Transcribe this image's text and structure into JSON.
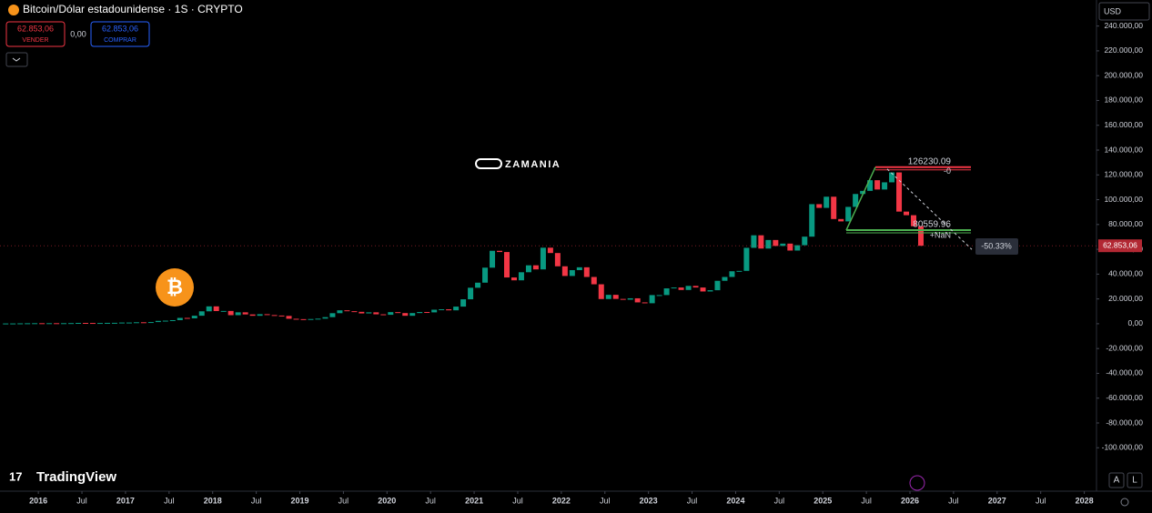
{
  "header": {
    "symbol": "Bitcoin/Dólar estadounidense · 1S · CRYPTO",
    "sell_price": "62.853,06",
    "sell_label": "VENDER",
    "spread": "0,00",
    "buy_price": "62.853,06",
    "buy_label": "COMPRAR",
    "currency": "USD",
    "watermark": "ZAMANIA",
    "brand": "TradingView",
    "auto_button": "A",
    "log_button": "L"
  },
  "chart_data": {
    "type": "candlestick",
    "up_color": "#089981",
    "down_color": "#f23645",
    "x": [
      "2015-08",
      "2015-09",
      "2015-10",
      "2015-11",
      "2015-12",
      "2016-01",
      "2016-02",
      "2016-03",
      "2016-04",
      "2016-05",
      "2016-06",
      "2016-07",
      "2016-08",
      "2016-09",
      "2016-10",
      "2016-11",
      "2016-12",
      "2017-01",
      "2017-02",
      "2017-03",
      "2017-04",
      "2017-05",
      "2017-06",
      "2017-07",
      "2017-08",
      "2017-09",
      "2017-10",
      "2017-11",
      "2017-12",
      "2018-01",
      "2018-02",
      "2018-03",
      "2018-04",
      "2018-05",
      "2018-06",
      "2018-07",
      "2018-08",
      "2018-09",
      "2018-10",
      "2018-11",
      "2018-12",
      "2019-01",
      "2019-02",
      "2019-03",
      "2019-04",
      "2019-05",
      "2019-06",
      "2019-07",
      "2019-08",
      "2019-09",
      "2019-10",
      "2019-11",
      "2019-12",
      "2020-01",
      "2020-02",
      "2020-03",
      "2020-04",
      "2020-05",
      "2020-06",
      "2020-07",
      "2020-08",
      "2020-09",
      "2020-10",
      "2020-11",
      "2020-12",
      "2021-01",
      "2021-02",
      "2021-03",
      "2021-04",
      "2021-05",
      "2021-06",
      "2021-07",
      "2021-08",
      "2021-09",
      "2021-10",
      "2021-11",
      "2021-12",
      "2022-01",
      "2022-02",
      "2022-03",
      "2022-04",
      "2022-05",
      "2022-06",
      "2022-07",
      "2022-08",
      "2022-09",
      "2022-10",
      "2022-11",
      "2022-12",
      "2023-01",
      "2023-02",
      "2023-03",
      "2023-04",
      "2023-05",
      "2023-06",
      "2023-07",
      "2023-08",
      "2023-09",
      "2023-10",
      "2023-11",
      "2023-12",
      "2024-01",
      "2024-02",
      "2024-03",
      "2024-04",
      "2024-05",
      "2024-06",
      "2024-07",
      "2024-08",
      "2024-09",
      "2024-10",
      "2024-11",
      "2024-12",
      "2025-01",
      "2025-02",
      "2025-03",
      "2025-04",
      "2025-05",
      "2025-06",
      "2025-07",
      "2025-08",
      "2025-09",
      "2025-10",
      "2025-11",
      "2025-12",
      "2026-01",
      "2026-02"
    ],
    "values": [
      230,
      236,
      314,
      377,
      430,
      368,
      437,
      416,
      448,
      531,
      670,
      624,
      575,
      609,
      701,
      740,
      963,
      970,
      1190,
      1080,
      1350,
      2300,
      2480,
      2870,
      4700,
      4340,
      6450,
      10000,
      14000,
      10200,
      10300,
      6900,
      9200,
      7500,
      6400,
      7700,
      7000,
      6600,
      6300,
      4000,
      3700,
      3450,
      3800,
      4100,
      5300,
      8500,
      10800,
      10100,
      9600,
      8300,
      9200,
      7600,
      7200,
      9350,
      8600,
      6400,
      8600,
      9450,
      9150,
      11300,
      11650,
      10800,
      13800,
      19700,
      29000,
      33100,
      45200,
      58800,
      57800,
      37300,
      35000,
      41500,
      47100,
      43800,
      61300,
      57000,
      46300,
      38500,
      43200,
      45500,
      37700,
      31800,
      19900,
      23300,
      20000,
      19400,
      20500,
      17200,
      16500,
      23100,
      23100,
      28500,
      29200,
      27200,
      30500,
      29200,
      26000,
      27000,
      34600,
      37700,
      42300,
      42600,
      61200,
      71300,
      60600,
      67500,
      62700,
      64600,
      59000,
      63300,
      70200,
      96400,
      93400,
      102400,
      84400,
      82500,
      94200,
      104600,
      107100,
      115700,
      108200,
      114000,
      122000,
      90400,
      87500,
      78600,
      62853.06
    ],
    "xlim": [
      2015.56,
      2028.14
    ],
    "xticks": [
      {
        "value": 2016,
        "label": "2016"
      },
      {
        "value": 2016.5,
        "label": "Jul"
      },
      {
        "value": 2017,
        "label": "2017"
      },
      {
        "value": 2017.5,
        "label": "Jul"
      },
      {
        "value": 2018,
        "label": "2018"
      },
      {
        "value": 2018.5,
        "label": "Jul"
      },
      {
        "value": 2019,
        "label": "2019"
      },
      {
        "value": 2019.5,
        "label": "Jul"
      },
      {
        "value": 2020,
        "label": "2020"
      },
      {
        "value": 2020.5,
        "label": "Jul"
      },
      {
        "value": 2021,
        "label": "2021"
      },
      {
        "value": 2021.5,
        "label": "Jul"
      },
      {
        "value": 2022,
        "label": "2022"
      },
      {
        "value": 2022.5,
        "label": "Jul"
      },
      {
        "value": 2023,
        "label": "2023"
      },
      {
        "value": 2023.5,
        "label": "Jul"
      },
      {
        "value": 2024,
        "label": "2024"
      },
      {
        "value": 2024.5,
        "label": "Jul"
      },
      {
        "value": 2025,
        "label": "2025"
      },
      {
        "value": 2025.5,
        "label": "Jul"
      },
      {
        "value": 2026,
        "label": "2026"
      },
      {
        "value": 2026.5,
        "label": "Jul"
      },
      {
        "value": 2027,
        "label": "2027"
      },
      {
        "value": 2027.5,
        "label": "Jul"
      },
      {
        "value": 2028,
        "label": "2028"
      }
    ],
    "ylim": [
      -135000,
      261000
    ],
    "yticks": [
      {
        "value": 240000,
        "label": "240.000,00"
      },
      {
        "value": 220000,
        "label": "220.000,00"
      },
      {
        "value": 200000,
        "label": "200.000,00"
      },
      {
        "value": 180000,
        "label": "180.000,00"
      },
      {
        "value": 160000,
        "label": "160.000,00"
      },
      {
        "value": 140000,
        "label": "140.000,00"
      },
      {
        "value": 120000,
        "label": "120.000,00"
      },
      {
        "value": 100000,
        "label": "100.000,00"
      },
      {
        "value": 80000,
        "label": "80.000,00"
      },
      {
        "value": 60000,
        "label": "60.000,00"
      },
      {
        "value": 40000,
        "label": "40.000,00"
      },
      {
        "value": 20000,
        "label": "20.000,00"
      },
      {
        "value": 0,
        "label": "0,00"
      },
      {
        "value": -20000,
        "label": "-20.000,00"
      },
      {
        "value": -40000,
        "label": "-40.000,00"
      },
      {
        "value": -60000,
        "label": "-60.000,00"
      },
      {
        "value": -80000,
        "label": "-80.000,00"
      },
      {
        "value": -100000,
        "label": "-100.000,00"
      }
    ],
    "last_price": {
      "value": 62853.06,
      "label": "62.853,06"
    },
    "range_high": 126230.09,
    "range_high_change": "-0",
    "range_low": 80559.96,
    "range_low_change": "+NaN",
    "drawdown": "-50.33%"
  }
}
